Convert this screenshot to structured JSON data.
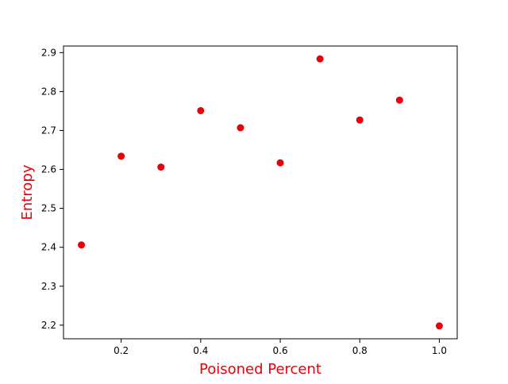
{
  "chart_data": {
    "type": "scatter",
    "title": "",
    "xlabel": "Poisoned Percent",
    "ylabel": "Entropy",
    "xlim": [
      0.055,
      1.045
    ],
    "ylim": [
      2.165,
      2.917
    ],
    "xticks": [
      0.2,
      0.4,
      0.6,
      0.8,
      1.0
    ],
    "xtick_labels": [
      "0.2",
      "0.4",
      "0.6",
      "0.8",
      "1.0"
    ],
    "yticks": [
      2.2,
      2.3,
      2.4,
      2.5,
      2.6,
      2.7,
      2.8,
      2.9
    ],
    "ytick_labels": [
      "2.2",
      "2.3",
      "2.4",
      "2.5",
      "2.6",
      "2.7",
      "2.8",
      "2.9"
    ],
    "grid": false,
    "legend": "none",
    "series": [
      {
        "color": "#e8000b",
        "x": [
          0.1,
          0.2,
          0.3,
          0.4,
          0.5,
          0.6,
          0.7,
          0.8,
          0.9,
          1.0
        ],
        "y": [
          2.406,
          2.634,
          2.606,
          2.751,
          2.707,
          2.617,
          2.884,
          2.727,
          2.778,
          2.198
        ]
      }
    ],
    "label_color": "#e8000b"
  }
}
